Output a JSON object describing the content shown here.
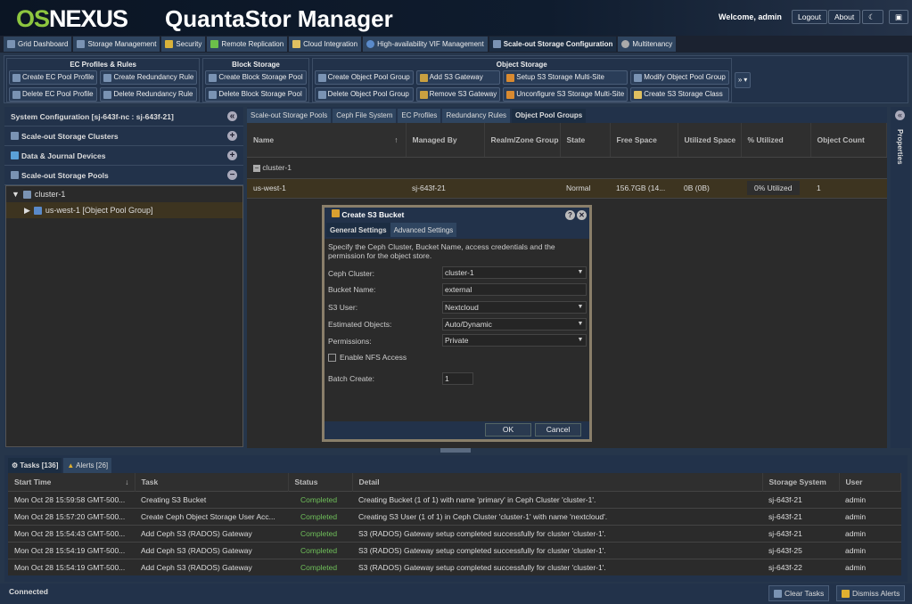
{
  "header": {
    "logo_os": "OS",
    "logo_nexus": "NEXUS",
    "title": "QuantaStor Manager",
    "welcome": "Welcome, admin",
    "logout": "Logout",
    "about": "About"
  },
  "tabs": [
    "Grid Dashboard",
    "Storage Management",
    "Security",
    "Remote Replication",
    "Cloud Integration",
    "High-availability VIF Management",
    "Scale-out Storage Configuration",
    "Multitenancy"
  ],
  "toolbar": {
    "ec": {
      "title": "EC Profiles & Rules",
      "buttons": [
        "Create EC Pool Profile",
        "Create Redundancy Rule",
        "Delete EC Pool Profile",
        "Delete Redundancy Rule"
      ]
    },
    "block": {
      "title": "Block Storage",
      "buttons": [
        "Create Block Storage Pool",
        "Delete Block Storage Pool"
      ]
    },
    "object": {
      "title": "Object Storage",
      "buttons": [
        "Create Object Pool Group",
        "Add S3 Gateway",
        "Setup S3 Storage Multi-Site",
        "Modify Object Pool Group",
        "Delete Object Pool Group",
        "Remove S3 Gateway",
        "Unconfigure S3 Storage Multi-Site",
        "Create S3 Storage Class"
      ]
    },
    "more": "»"
  },
  "left": {
    "title": "System Configuration [sj-643f-nc : sj-643f-21]",
    "sections": [
      "Scale-out Storage Clusters",
      "Data & Journal Devices",
      "Scale-out Storage Pools"
    ],
    "tree": {
      "cluster": "cluster-1",
      "child": "us-west-1 [Object Pool Group]"
    }
  },
  "center": {
    "tabs": [
      "Scale-out Storage Pools",
      "Ceph File System",
      "EC Profiles",
      "Redundancy Rules",
      "Object Pool Groups"
    ],
    "columns": [
      "Name",
      "Managed By",
      "Realm/Zone Group",
      "State",
      "Free Space",
      "Utilized Space",
      "% Utilized",
      "Object Count"
    ],
    "group": "cluster-1",
    "row": {
      "name": "us-west-1",
      "managed_by": "sj-643f-21",
      "realm": "",
      "state": "Normal",
      "free": "156.7GB (14...",
      "used": "0B (0B)",
      "util": "0% Utilized",
      "count": "1"
    }
  },
  "properties": "Properties",
  "dialog": {
    "title": "Create S3 Bucket",
    "tabs": [
      "General Settings",
      "Advanced Settings"
    ],
    "description": "Specify the Ceph Cluster, Bucket Name, access credentials and the permission for the object store.",
    "fields": {
      "cluster_label": "Ceph Cluster:",
      "cluster": "cluster-1",
      "bucket_label": "Bucket Name:",
      "bucket": "external",
      "user_label": "S3 User:",
      "user": "Nextcloud",
      "objects_label": "Estimated Objects:",
      "objects": "Auto/Dynamic",
      "perm_label": "Permissions:",
      "perm": "Private",
      "nfs_label": "Enable NFS Access",
      "nfs_checked": false,
      "batch_label": "Batch Create:",
      "batch": "1"
    },
    "ok": "OK",
    "cancel": "Cancel"
  },
  "bottom": {
    "tabs": [
      "Tasks [136]",
      "Alerts [26]"
    ],
    "columns": [
      "Start Time",
      "Task",
      "Status",
      "Detail",
      "Storage System",
      "User"
    ],
    "rows": [
      [
        "Mon Oct 28 15:59:58 GMT-500...",
        "Creating S3 Bucket",
        "Completed",
        "Creating Bucket (1 of 1) with name 'primary' in Ceph Cluster 'cluster-1'.",
        "sj-643f-21",
        "admin"
      ],
      [
        "Mon Oct 28 15:57:20 GMT-500...",
        "Create Ceph Object Storage User Acc...",
        "Completed",
        "Creating S3 User (1 of 1) in Ceph Cluster 'cluster-1' with name 'nextcloud'.",
        "sj-643f-21",
        "admin"
      ],
      [
        "Mon Oct 28 15:54:43 GMT-500...",
        "Add Ceph S3 (RADOS) Gateway",
        "Completed",
        "S3 (RADOS) Gateway setup completed successfully for cluster 'cluster-1'.",
        "sj-643f-21",
        "admin"
      ],
      [
        "Mon Oct 28 15:54:19 GMT-500...",
        "Add Ceph S3 (RADOS) Gateway",
        "Completed",
        "S3 (RADOS) Gateway setup completed successfully for cluster 'cluster-1'.",
        "sj-643f-25",
        "admin"
      ],
      [
        "Mon Oct 28 15:54:19 GMT-500...",
        "Add Ceph S3 (RADOS) Gateway",
        "Completed",
        "S3 (RADOS) Gateway setup completed successfully for cluster 'cluster-1'.",
        "sj-643f-22",
        "admin"
      ]
    ]
  },
  "status": {
    "text": "Connected",
    "clear": "Clear Tasks",
    "dismiss": "Dismiss Alerts"
  }
}
